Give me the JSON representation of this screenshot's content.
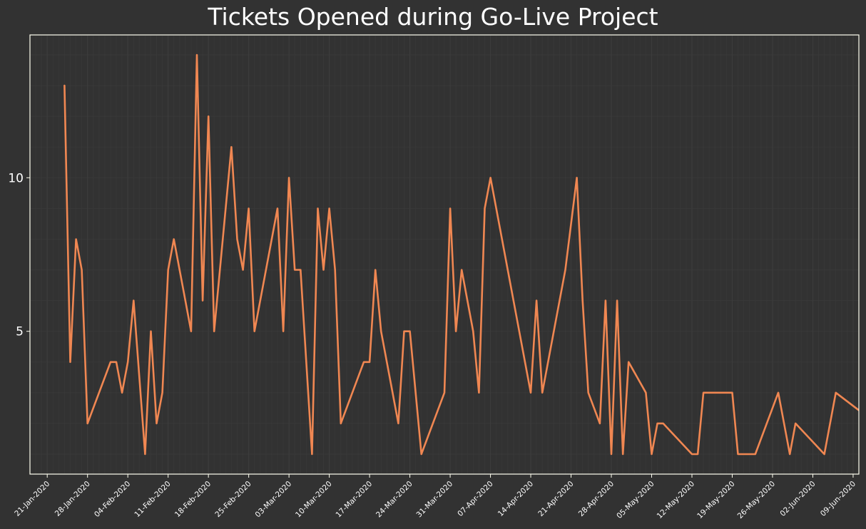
{
  "colors": {
    "background": "#323232",
    "line": "#F08752",
    "frame": "#FFFFF0",
    "grid": "#3C3C3C",
    "text": "#FFFFFF"
  },
  "chart_data": {
    "type": "line",
    "title": "Tickets Opened during Go-Live Project",
    "xlabel": "",
    "ylabel": "",
    "x_type": "date",
    "xlim": [
      "2020-01-18",
      "2020-06-10"
    ],
    "ylim": [
      0.35,
      14.65
    ],
    "grid": true,
    "yticks": [
      5,
      10
    ],
    "xticks": [
      {
        "date": "2020-01-21",
        "label": "21-Jan-2020"
      },
      {
        "date": "2020-01-28",
        "label": "28-Jan-2020"
      },
      {
        "date": "2020-02-04",
        "label": "04-Feb-2020"
      },
      {
        "date": "2020-02-11",
        "label": "11-Feb-2020"
      },
      {
        "date": "2020-02-18",
        "label": "18-Feb-2020"
      },
      {
        "date": "2020-02-25",
        "label": "25-Feb-2020"
      },
      {
        "date": "2020-03-03",
        "label": "03-Mar-2020"
      },
      {
        "date": "2020-03-10",
        "label": "10-Mar-2020"
      },
      {
        "date": "2020-03-17",
        "label": "17-Mar-2020"
      },
      {
        "date": "2020-03-24",
        "label": "24-Mar-2020"
      },
      {
        "date": "2020-03-31",
        "label": "31-Mar-2020"
      },
      {
        "date": "2020-04-07",
        "label": "07-Apr-2020"
      },
      {
        "date": "2020-04-14",
        "label": "14-Apr-2020"
      },
      {
        "date": "2020-04-21",
        "label": "21-Apr-2020"
      },
      {
        "date": "2020-04-28",
        "label": "28-Apr-2020"
      },
      {
        "date": "2020-05-05",
        "label": "05-May-2020"
      },
      {
        "date": "2020-05-12",
        "label": "12-May-2020"
      },
      {
        "date": "2020-05-19",
        "label": "19-May-2020"
      },
      {
        "date": "2020-05-26",
        "label": "26-May-2020"
      },
      {
        "date": "2020-06-02",
        "label": "02-Jun-2020"
      },
      {
        "date": "2020-06-09",
        "label": "09-Jun-2020"
      }
    ],
    "series": [
      {
        "x": [
          "2020-01-24",
          "2020-01-25",
          "2020-01-26",
          "2020-01-27",
          "2020-01-28",
          "2020-02-01",
          "2020-02-02",
          "2020-02-03",
          "2020-02-04",
          "2020-02-05",
          "2020-02-07",
          "2020-02-08",
          "2020-02-09",
          "2020-02-10",
          "2020-02-11",
          "2020-02-12",
          "2020-02-15",
          "2020-02-16",
          "2020-02-17",
          "2020-02-18",
          "2020-02-19",
          "2020-02-22",
          "2020-02-23",
          "2020-02-24",
          "2020-02-25",
          "2020-02-26",
          "2020-03-01",
          "2020-03-02",
          "2020-03-03",
          "2020-03-04",
          "2020-03-05",
          "2020-03-07",
          "2020-03-08",
          "2020-03-09",
          "2020-03-10",
          "2020-03-11",
          "2020-03-12",
          "2020-03-16",
          "2020-03-17",
          "2020-03-18",
          "2020-03-19",
          "2020-03-22",
          "2020-03-23",
          "2020-03-24",
          "2020-03-26",
          "2020-03-30",
          "2020-03-31",
          "2020-04-01",
          "2020-04-02",
          "2020-04-04",
          "2020-04-05",
          "2020-04-06",
          "2020-04-07",
          "2020-04-14",
          "2020-04-15",
          "2020-04-16",
          "2020-04-17",
          "2020-04-20",
          "2020-04-22",
          "2020-04-23",
          "2020-04-24",
          "2020-04-26",
          "2020-04-27",
          "2020-04-28",
          "2020-04-29",
          "2020-04-30",
          "2020-05-01",
          "2020-05-04",
          "2020-05-05",
          "2020-05-06",
          "2020-05-07",
          "2020-05-12",
          "2020-05-13",
          "2020-05-14",
          "2020-05-19",
          "2020-05-20",
          "2020-05-23",
          "2020-05-27",
          "2020-05-28",
          "2020-05-29",
          "2020-05-30",
          "2020-06-04",
          "2020-06-06",
          "2020-06-13"
        ],
        "values": [
          13,
          4,
          8,
          7,
          2,
          4,
          4,
          3,
          4,
          6,
          1,
          5,
          2,
          3,
          7,
          8,
          5,
          14,
          6,
          12,
          5,
          11,
          8,
          7,
          9,
          5,
          9,
          5,
          10,
          7,
          7,
          1,
          9,
          7,
          9,
          7,
          2,
          4,
          4,
          7,
          5,
          2,
          5,
          5,
          1,
          3,
          9,
          5,
          7,
          5,
          3,
          9,
          10,
          3,
          6,
          3,
          4,
          7,
          10,
          6,
          3,
          2,
          6,
          1,
          6,
          1,
          4,
          3,
          1,
          2,
          2,
          1,
          1,
          3,
          3,
          1,
          1,
          3,
          2,
          1,
          2,
          1,
          3,
          2
        ]
      }
    ]
  }
}
